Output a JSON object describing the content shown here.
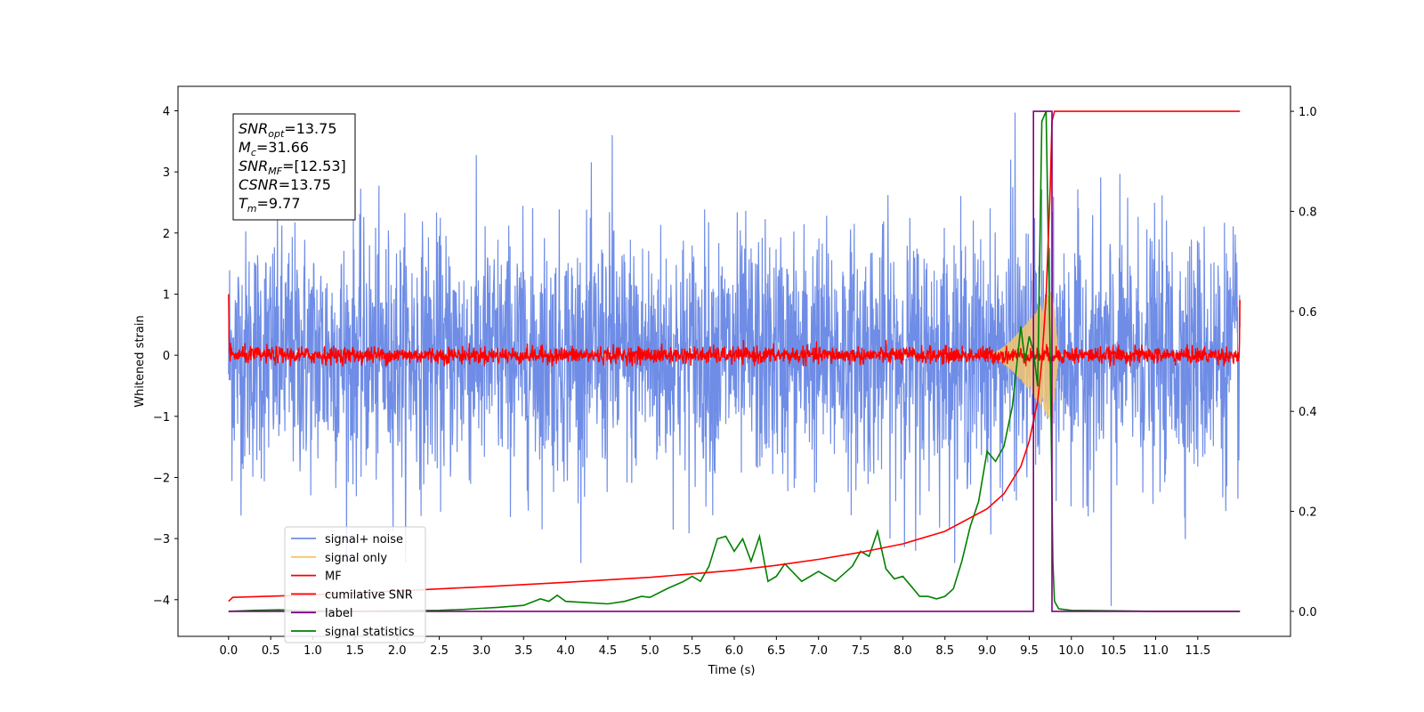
{
  "chart_data": {
    "type": "line",
    "xlabel": "Time (s)",
    "ylabel": "Whitened strain",
    "xlim": [
      -0.6,
      12.6
    ],
    "ylim": [
      -4.6,
      4.4
    ],
    "y2lim": [
      -0.05,
      1.05
    ],
    "x_ticks": [
      "0.0",
      "0.5",
      "1.0",
      "1.5",
      "2.0",
      "2.5",
      "3.0",
      "3.5",
      "4.0",
      "4.5",
      "5.0",
      "5.5",
      "6.0",
      "6.5",
      "7.0",
      "7.5",
      "8.0",
      "8.5",
      "9.0",
      "9.5",
      "10.0",
      "10.5",
      "11.0",
      "11.5"
    ],
    "y_ticks": [
      -4,
      -3,
      -2,
      -1,
      0,
      1,
      2,
      3,
      4
    ],
    "y_tick_labels": [
      "−4",
      "−3",
      "−2",
      "−1",
      "0",
      "1",
      "2",
      "3",
      "4"
    ],
    "y2_ticks": [
      0.0,
      0.2,
      0.4,
      0.6,
      0.8,
      1.0
    ],
    "y2_tick_labels": [
      "0.0",
      "0.2",
      "0.4",
      "0.6",
      "0.8",
      "1.0"
    ],
    "grid": false,
    "legend_position": "lower-left",
    "annotation": {
      "lines": [
        {
          "sym": "SNR",
          "sub": "opt",
          "value": "=13.75"
        },
        {
          "sym": "M",
          "sub": "c",
          "value": "=31.66"
        },
        {
          "sym": "SNR",
          "sub": "MF",
          "value": "=[12.53]"
        },
        {
          "sym": "CSNR",
          "sub": "",
          "value": "=13.75"
        },
        {
          "sym": "T",
          "sub": "m",
          "value": "=9.77"
        }
      ]
    },
    "series": [
      {
        "name": "signal+ noise",
        "axis": "left",
        "color": "#6f8de6",
        "description_points": {
          "x_range": [
            0.0,
            12.0
          ],
          "mean": 0.0,
          "approx_range": [
            -3.6,
            3.9
          ],
          "spikes": [
            [
              9.33,
              3.97
            ],
            [
              9.28,
              3.2
            ],
            [
              10.47,
              -4.1
            ],
            [
              8.15,
              -3.2
            ],
            [
              4.55,
              3.6
            ]
          ]
        }
      },
      {
        "name": "signal only",
        "axis": "left",
        "color": "#f5c66d",
        "chirp": {
          "start": 9.0,
          "merger": 9.77,
          "end": 9.85,
          "peak_amplitude": 1.1
        }
      },
      {
        "name": "MF",
        "axis": "left",
        "color": "#ff0000",
        "x": [
          0.0,
          0.02,
          12.0
        ],
        "approx": [
          1.0,
          0.0,
          0.9
        ],
        "noise_amplitude": 0.12
      },
      {
        "name": "cumilative SNR",
        "axis": "right",
        "color": "#ff0000",
        "x": [
          0.0,
          0.05,
          1.0,
          2.0,
          3.0,
          4.0,
          5.0,
          5.5,
          6.0,
          6.5,
          7.0,
          7.5,
          8.0,
          8.5,
          9.0,
          9.2,
          9.4,
          9.5,
          9.6,
          9.65,
          9.7,
          9.75,
          9.77,
          9.8,
          12.0
        ],
        "values": [
          0.02,
          0.028,
          0.033,
          0.041,
          0.049,
          0.058,
          0.068,
          0.075,
          0.082,
          0.092,
          0.104,
          0.118,
          0.135,
          0.16,
          0.205,
          0.235,
          0.29,
          0.34,
          0.42,
          0.5,
          0.63,
          0.85,
          0.98,
          1.0,
          1.0
        ]
      },
      {
        "name": "label",
        "axis": "right",
        "color": "#800080",
        "x": [
          0.0,
          9.55,
          9.55,
          9.77,
          9.77,
          12.0
        ],
        "values": [
          0.0,
          0.0,
          1.0,
          1.0,
          0.0,
          0.0
        ]
      },
      {
        "name": "signal statistics",
        "axis": "right",
        "color": "#008000",
        "x": [
          0.0,
          0.3,
          0.6,
          1.0,
          1.5,
          2.0,
          2.5,
          2.8,
          3.0,
          3.2,
          3.5,
          3.7,
          3.8,
          3.9,
          4.0,
          4.2,
          4.5,
          4.7,
          4.9,
          5.0,
          5.2,
          5.4,
          5.5,
          5.6,
          5.7,
          5.8,
          5.9,
          6.0,
          6.1,
          6.2,
          6.3,
          6.4,
          6.5,
          6.6,
          6.8,
          7.0,
          7.2,
          7.4,
          7.5,
          7.6,
          7.7,
          7.8,
          7.9,
          8.0,
          8.1,
          8.2,
          8.3,
          8.4,
          8.5,
          8.6,
          8.7,
          8.8,
          8.9,
          9.0,
          9.1,
          9.2,
          9.3,
          9.4,
          9.45,
          9.5,
          9.55,
          9.6,
          9.65,
          9.7,
          9.75,
          9.78,
          9.8,
          9.85,
          10.0,
          10.5,
          11.0,
          12.0
        ],
        "values": [
          0.0,
          0.002,
          0.003,
          0.001,
          0.0,
          0.001,
          0.002,
          0.004,
          0.006,
          0.008,
          0.012,
          0.025,
          0.02,
          0.032,
          0.02,
          0.018,
          0.015,
          0.02,
          0.03,
          0.028,
          0.045,
          0.06,
          0.07,
          0.06,
          0.09,
          0.145,
          0.15,
          0.12,
          0.145,
          0.1,
          0.15,
          0.06,
          0.07,
          0.095,
          0.06,
          0.08,
          0.06,
          0.09,
          0.12,
          0.11,
          0.16,
          0.085,
          0.065,
          0.07,
          0.05,
          0.03,
          0.03,
          0.025,
          0.03,
          0.045,
          0.1,
          0.17,
          0.22,
          0.32,
          0.3,
          0.33,
          0.41,
          0.57,
          0.5,
          0.55,
          0.52,
          0.45,
          0.98,
          1.0,
          0.5,
          0.1,
          0.02,
          0.005,
          0.002,
          0.001,
          0.0,
          0.0
        ]
      }
    ]
  }
}
